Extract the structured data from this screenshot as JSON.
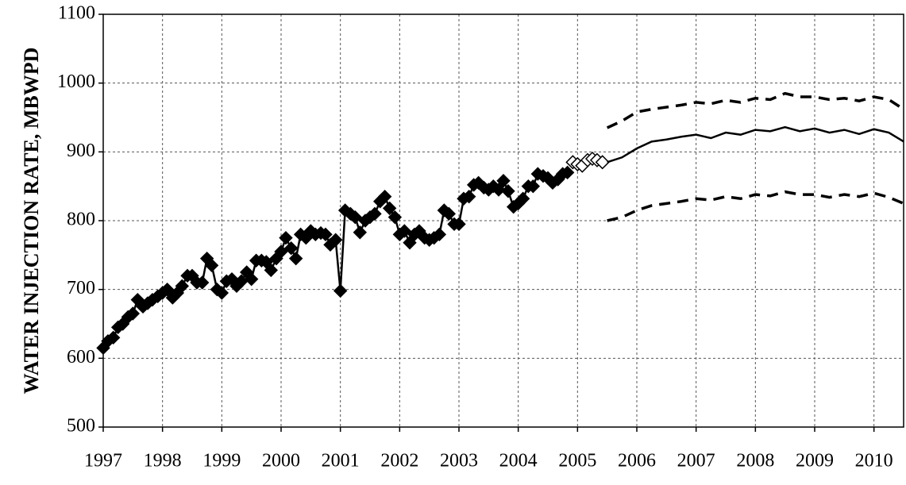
{
  "chart_data": {
    "type": "line",
    "ylabel": "WATER INJECTION RATE, MBWPD",
    "xlim": [
      1997,
      2010.5
    ],
    "xticks": [
      1997,
      1998,
      1999,
      2000,
      2001,
      2002,
      2003,
      2004,
      2005,
      2006,
      2007,
      2008,
      2009,
      2010
    ],
    "ylim": [
      500,
      1100
    ],
    "yticks": [
      500,
      600,
      700,
      800,
      900,
      1000,
      1100
    ],
    "grid": true,
    "series": [
      {
        "color": "#000000",
        "marker": "diamond-filled",
        "line": "solid",
        "x": [
          1997,
          1997.08,
          1997.17,
          1997.25,
          1997.33,
          1997.42,
          1997.5,
          1997.58,
          1997.67,
          1997.75,
          1997.83,
          1997.92,
          1998,
          1998.08,
          1998.17,
          1998.25,
          1998.33,
          1998.42,
          1998.5,
          1998.58,
          1998.67,
          1998.75,
          1998.83,
          1998.92,
          1999,
          1999.08,
          1999.17,
          1999.25,
          1999.33,
          1999.42,
          1999.5,
          1999.58,
          1999.67,
          1999.75,
          1999.83,
          1999.92,
          2000,
          2000.08,
          2000.17,
          2000.25,
          2000.33,
          2000.42,
          2000.5,
          2000.58,
          2000.67,
          2000.75,
          2000.83,
          2000.92,
          2001,
          2001.08,
          2001.17,
          2001.25,
          2001.33,
          2001.42,
          2001.5,
          2001.58,
          2001.67,
          2001.75,
          2001.83,
          2001.92,
          2002,
          2002.08,
          2002.17,
          2002.25,
          2002.33,
          2002.42,
          2002.5,
          2002.58,
          2002.67,
          2002.75,
          2002.83,
          2002.92,
          2003,
          2003.08,
          2003.17,
          2003.25,
          2003.33,
          2003.42,
          2003.5,
          2003.58,
          2003.67,
          2003.75,
          2003.83,
          2003.92,
          2004,
          2004.08,
          2004.17,
          2004.25,
          2004.33,
          2004.42,
          2004.5,
          2004.58,
          2004.67,
          2004.75,
          2004.83
        ],
        "values": [
          615,
          625,
          630,
          645,
          650,
          660,
          665,
          685,
          675,
          680,
          685,
          690,
          695,
          700,
          688,
          695,
          705,
          720,
          720,
          710,
          710,
          745,
          735,
          700,
          695,
          712,
          715,
          705,
          712,
          725,
          715,
          742,
          742,
          740,
          728,
          745,
          755,
          775,
          760,
          745,
          780,
          775,
          785,
          780,
          782,
          780,
          765,
          772,
          698,
          815,
          810,
          805,
          783,
          800,
          805,
          810,
          828,
          835,
          818,
          805,
          780,
          785,
          768,
          780,
          785,
          775,
          772,
          775,
          780,
          815,
          810,
          795,
          795,
          832,
          835,
          852,
          855,
          848,
          845,
          850,
          845,
          858,
          843,
          820,
          825,
          832,
          850,
          850,
          868,
          865,
          862,
          855,
          860,
          868,
          870
        ]
      },
      {
        "color": "#000000",
        "marker": "diamond-open",
        "line": "none",
        "x": [
          2004.92,
          2005,
          2005.08,
          2005.17,
          2005.25,
          2005.33,
          2005.42
        ],
        "values": [
          885,
          882,
          880,
          888,
          890,
          888,
          885
        ]
      },
      {
        "color": "#000000",
        "marker": "none",
        "line": "solid",
        "x": [
          2005.5,
          2005.75,
          2006,
          2006.25,
          2006.5,
          2006.75,
          2007,
          2007.25,
          2007.5,
          2007.75,
          2008,
          2008.25,
          2008.5,
          2008.75,
          2009,
          2009.25,
          2009.5,
          2009.75,
          2010,
          2010.25,
          2010.5
        ],
        "values": [
          885,
          892,
          905,
          915,
          918,
          922,
          925,
          920,
          928,
          925,
          932,
          930,
          936,
          930,
          934,
          928,
          932,
          926,
          933,
          928,
          915
        ]
      },
      {
        "color": "#000000",
        "marker": "none",
        "line": "dashed",
        "x": [
          2005.5,
          2005.75,
          2006,
          2006.25,
          2006.5,
          2006.75,
          2007,
          2007.25,
          2007.5,
          2007.75,
          2008,
          2008.25,
          2008.5,
          2008.75,
          2009,
          2009.25,
          2009.5,
          2009.75,
          2010,
          2010.25,
          2010.5
        ],
        "values": [
          935,
          945,
          958,
          962,
          965,
          968,
          972,
          970,
          975,
          972,
          978,
          976,
          985,
          980,
          980,
          976,
          978,
          974,
          980,
          976,
          962
        ]
      },
      {
        "color": "#000000",
        "marker": "none",
        "line": "dashed",
        "x": [
          2005.5,
          2005.75,
          2006,
          2006.25,
          2006.5,
          2006.75,
          2007,
          2007.25,
          2007.5,
          2007.75,
          2008,
          2008.25,
          2008.5,
          2008.75,
          2009,
          2009.25,
          2009.5,
          2009.75,
          2010,
          2010.25,
          2010.5
        ],
        "values": [
          800,
          805,
          815,
          822,
          825,
          828,
          832,
          830,
          835,
          832,
          838,
          836,
          842,
          838,
          838,
          834,
          838,
          835,
          840,
          834,
          825
        ]
      }
    ]
  }
}
